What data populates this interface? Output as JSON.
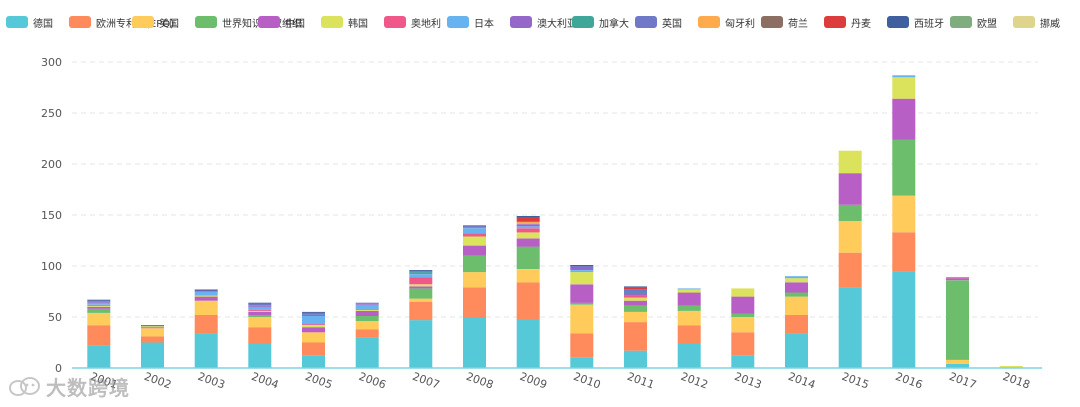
{
  "chart_data": {
    "type": "bar",
    "stacked": true,
    "categories": [
      "2001",
      "2002",
      "2003",
      "2004",
      "2005",
      "2006",
      "2007",
      "2008",
      "2009",
      "2010",
      "2011",
      "2012",
      "2013",
      "2014",
      "2015",
      "2016",
      "2017",
      "2018"
    ],
    "ylim": [
      0,
      300
    ],
    "yticks": [
      0,
      50,
      100,
      150,
      200,
      250,
      300
    ],
    "grid": "horizontal dashed",
    "legend_position": "top",
    "series": [
      {
        "name": "德国",
        "color": "#56c9d9",
        "values": [
          22,
          25,
          34,
          24,
          12,
          30,
          47,
          49,
          48,
          10,
          17,
          24,
          12,
          34,
          79,
          95,
          4,
          0
        ]
      },
      {
        "name": "欧洲专利局(EPO)",
        "color": "#ff8a5b",
        "values": [
          20,
          6,
          18,
          16,
          13,
          8,
          18,
          30,
          36,
          24,
          28,
          18,
          23,
          18,
          34,
          38,
          0,
          0
        ]
      },
      {
        "name": "美国",
        "color": "#ffcc5c",
        "values": [
          12,
          8,
          14,
          10,
          10,
          8,
          3,
          15,
          13,
          28,
          10,
          14,
          15,
          18,
          31,
          36,
          4,
          0
        ]
      },
      {
        "name": "世界知识产权组织",
        "color": "#6cbd6c",
        "values": [
          4,
          0,
          0,
          2,
          0,
          5,
          10,
          16,
          22,
          2,
          6,
          5,
          3,
          4,
          16,
          55,
          78,
          0
        ]
      },
      {
        "name": "中国",
        "color": "#b85fc6",
        "values": [
          2,
          1,
          4,
          3,
          5,
          5,
          2,
          10,
          8,
          18,
          5,
          13,
          17,
          10,
          31,
          40,
          2,
          0
        ]
      },
      {
        "name": "韩国",
        "color": "#dbe35c",
        "values": [
          1,
          1,
          1,
          1,
          2,
          1,
          2,
          9,
          6,
          12,
          3,
          3,
          8,
          4,
          22,
          21,
          0,
          2
        ]
      },
      {
        "name": "奥地利",
        "color": "#f0588a",
        "values": [
          1,
          0,
          0,
          1,
          1,
          1,
          7,
          3,
          4,
          0,
          2,
          0,
          0,
          0,
          0,
          0,
          1,
          0
        ]
      },
      {
        "name": "日本",
        "color": "#66b3f0",
        "values": [
          2,
          0,
          4,
          3,
          8,
          4,
          3,
          5,
          2,
          2,
          0,
          1,
          0,
          2,
          0,
          2,
          0,
          0
        ]
      },
      {
        "name": "澳大利亚",
        "color": "#9467c9",
        "values": [
          1,
          0,
          1,
          1,
          1,
          1,
          1,
          1,
          2,
          2,
          2,
          0,
          0,
          0,
          0,
          0,
          0,
          0
        ]
      },
      {
        "name": "加拿大",
        "color": "#3fa69a",
        "values": [
          0,
          0,
          0,
          0,
          0,
          0,
          1,
          0,
          0,
          0,
          1,
          0,
          0,
          0,
          0,
          0,
          0,
          0
        ]
      },
      {
        "name": "英国",
        "color": "#6f79c7",
        "values": [
          1,
          0,
          0,
          2,
          2,
          1,
          1,
          2,
          0,
          2,
          3,
          0,
          0,
          0,
          0,
          0,
          0,
          0
        ]
      },
      {
        "name": "匈牙利",
        "color": "#ffaa4c",
        "values": [
          0,
          0,
          0,
          0,
          0,
          0,
          0,
          0,
          2,
          0,
          0,
          0,
          0,
          0,
          0,
          0,
          0,
          0
        ]
      },
      {
        "name": "荷兰",
        "color": "#8d6e63",
        "values": [
          0,
          0,
          0,
          0,
          0,
          0,
          0,
          0,
          1,
          0,
          0,
          0,
          0,
          0,
          0,
          0,
          0,
          0
        ]
      },
      {
        "name": "丹麦",
        "color": "#dd3c3c",
        "values": [
          0,
          0,
          0,
          0,
          0,
          0,
          0,
          0,
          4,
          0,
          2,
          0,
          0,
          0,
          0,
          0,
          0,
          0
        ]
      },
      {
        "name": "西班牙",
        "color": "#3f5f9e",
        "values": [
          1,
          1,
          1,
          1,
          1,
          0,
          1,
          0,
          1,
          1,
          1,
          0,
          0,
          0,
          0,
          0,
          0,
          0
        ]
      },
      {
        "name": "欧盟",
        "color": "#7fad7f",
        "values": [
          0,
          0,
          0,
          0,
          0,
          0,
          0,
          0,
          0,
          0,
          0,
          0,
          0,
          0,
          0,
          0,
          0,
          0
        ]
      },
      {
        "name": "挪威",
        "color": "#dfd48c",
        "values": [
          0,
          0,
          0,
          0,
          0,
          0,
          0,
          0,
          0,
          0,
          0,
          0,
          0,
          0,
          0,
          0,
          0,
          0
        ]
      }
    ]
  },
  "watermark": {
    "text": "大数跨境"
  }
}
